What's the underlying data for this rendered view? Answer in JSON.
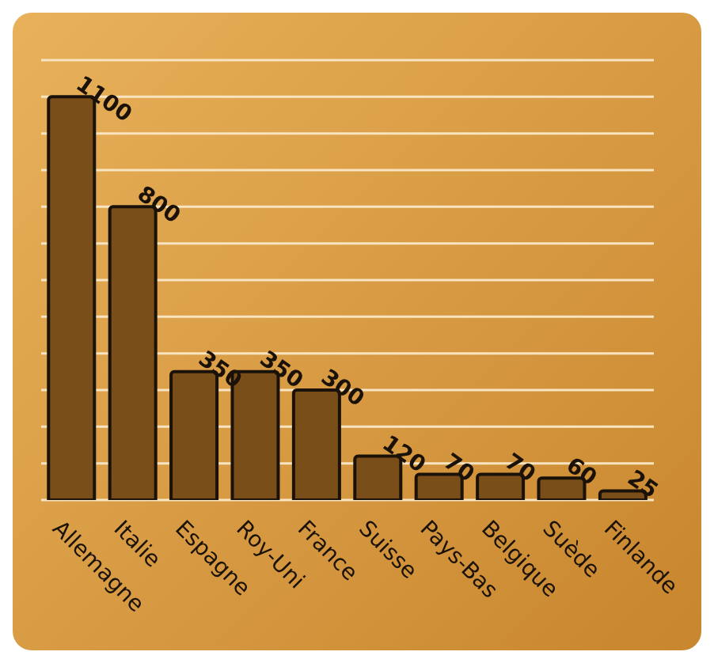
{
  "chart_data": {
    "type": "bar",
    "categories": [
      "Allemagne",
      "Italie",
      "Espagne",
      "Roy-Uni",
      "France",
      "Suisse",
      "Pays-Bas",
      "Belgique",
      "Suède",
      "Finlande"
    ],
    "values": [
      1100,
      800,
      350,
      350,
      300,
      120,
      70,
      70,
      60,
      25
    ],
    "color": "#7a4e18",
    "data_labels": true,
    "grid": "y",
    "tick_labels": "x",
    "ylim": [
      0,
      1200
    ],
    "yticks": [
      {
        "value": 0,
        "label": null
      },
      {
        "value": 100,
        "label": null
      },
      {
        "value": 200,
        "label": null
      },
      {
        "value": 300,
        "label": null
      },
      {
        "value": 400,
        "label": null
      },
      {
        "value": 500,
        "label": null
      },
      {
        "value": 600,
        "label": null
      },
      {
        "value": 700,
        "label": null
      },
      {
        "value": 800,
        "label": null
      },
      {
        "value": 900,
        "label": null
      },
      {
        "value": 1000,
        "label": null
      },
      {
        "value": 1100,
        "label": null
      },
      {
        "value": 1200,
        "label": null
      }
    ]
  }
}
